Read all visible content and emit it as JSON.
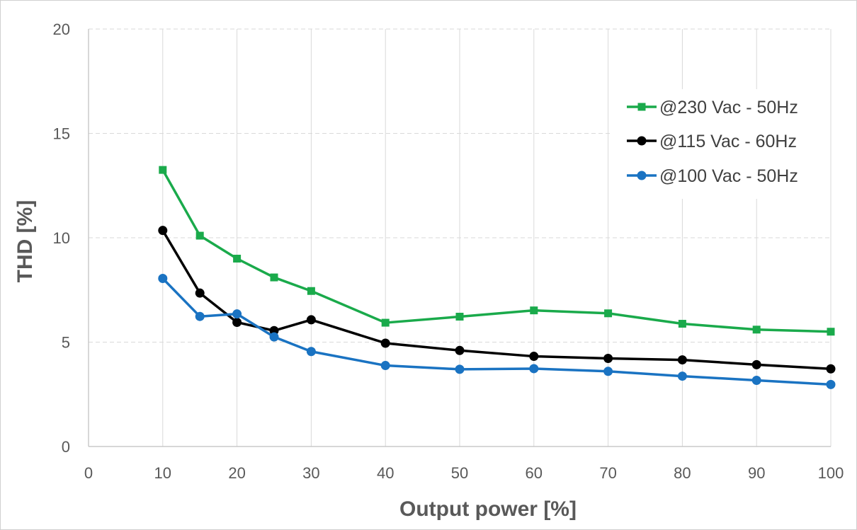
{
  "chart_data": {
    "type": "line",
    "title": "",
    "xlabel": "Output power [%]",
    "ylabel": "THD [%]",
    "xlim": [
      0,
      100
    ],
    "ylim": [
      0,
      20
    ],
    "xticks": [
      0,
      10,
      20,
      30,
      40,
      50,
      60,
      70,
      80,
      90,
      100
    ],
    "yticks": [
      0,
      5,
      10,
      15,
      20
    ],
    "grid": true,
    "legend_position": "top-right",
    "x": [
      10,
      15,
      20,
      25,
      30,
      40,
      50,
      60,
      70,
      80,
      90,
      100
    ],
    "series": [
      {
        "name": "@230 Vac - 50Hz",
        "color": "#1aaa4b",
        "marker": "square",
        "values": [
          13.25,
          10.1,
          9.0,
          8.1,
          7.45,
          5.93,
          6.22,
          6.52,
          6.38,
          5.88,
          5.6,
          5.5
        ]
      },
      {
        "name": "@115 Vac - 60Hz",
        "color": "#000000",
        "marker": "circle",
        "values": [
          10.35,
          7.35,
          5.95,
          5.55,
          6.07,
          4.95,
          4.6,
          4.32,
          4.22,
          4.15,
          3.92,
          3.72
        ]
      },
      {
        "name": "@100 Vac - 50Hz",
        "color": "#1a73c2",
        "marker": "circle",
        "values": [
          8.05,
          6.23,
          6.35,
          5.25,
          4.55,
          3.88,
          3.7,
          3.73,
          3.6,
          3.37,
          3.17,
          2.97
        ]
      }
    ]
  }
}
